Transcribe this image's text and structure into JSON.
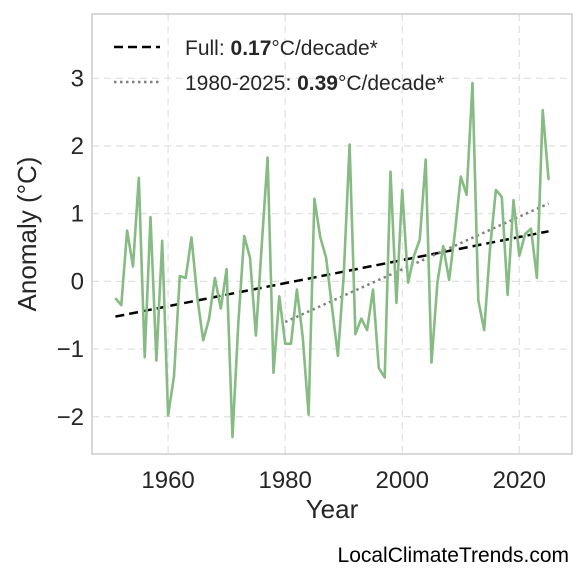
{
  "watermark": "LocalClimateTrends.com",
  "colors": {
    "series": "#86bb83",
    "full_trend": "#000000",
    "recent_trend": "#808080",
    "grid": "#e0e0e0",
    "frame": "#cccccc"
  },
  "chart_data": {
    "type": "line",
    "title": "",
    "xlabel": "Year",
    "ylabel": "Anomaly (°C)",
    "xlim": [
      1947,
      2029
    ],
    "ylim": [
      -2.55,
      3.95
    ],
    "xticks": [
      1960,
      1980,
      2000,
      2020
    ],
    "xtick_labels": [
      "1960",
      "1980",
      "2000",
      "2020"
    ],
    "yticks": [
      -2,
      -1,
      0,
      1,
      2,
      3
    ],
    "ytick_labels": [
      "−2",
      "−1",
      "0",
      "1",
      "2",
      "3"
    ],
    "grid": true,
    "legend_position": "top-left",
    "series": [
      {
        "name": "",
        "x": [
          1951,
          1952,
          1953,
          1954,
          1955,
          1956,
          1957,
          1958,
          1959,
          1960,
          1961,
          1962,
          1963,
          1964,
          1965,
          1966,
          1967,
          1968,
          1969,
          1970,
          1971,
          1972,
          1973,
          1974,
          1975,
          1976,
          1977,
          1978,
          1979,
          1980,
          1981,
          1982,
          1983,
          1984,
          1985,
          1986,
          1987,
          1988,
          1989,
          1990,
          1991,
          1992,
          1993,
          1994,
          1995,
          1996,
          1997,
          1998,
          1999,
          2000,
          2001,
          2002,
          2003,
          2004,
          2005,
          2006,
          2007,
          2008,
          2009,
          2010,
          2011,
          2012,
          2013,
          2014,
          2015,
          2016,
          2017,
          2018,
          2019,
          2020,
          2021,
          2022,
          2023,
          2024,
          2025
        ],
        "y": [
          -0.25,
          -0.35,
          0.75,
          0.22,
          1.53,
          -1.12,
          0.95,
          -1.17,
          0.6,
          -1.98,
          -1.4,
          0.08,
          0.05,
          0.65,
          -0.25,
          -0.87,
          -0.55,
          0.05,
          -0.4,
          0.18,
          -2.3,
          -0.62,
          0.67,
          0.35,
          -0.8,
          0.55,
          1.83,
          -1.35,
          -0.22,
          -0.92,
          -0.92,
          -0.12,
          -0.82,
          -1.97,
          1.22,
          0.65,
          0.35,
          -0.38,
          -1.1,
          0.08,
          2.02,
          -0.78,
          -0.55,
          -0.72,
          -0.12,
          -1.28,
          -1.42,
          1.62,
          -0.32,
          1.35,
          -0.02,
          0.38,
          0.62,
          1.8,
          -1.2,
          -0.02,
          0.52,
          0.02,
          0.72,
          1.55,
          1.28,
          2.93,
          -0.28,
          -0.72,
          0.48,
          1.35,
          1.25,
          -0.2,
          1.2,
          0.38,
          0.7,
          0.78,
          0.05,
          2.53,
          1.5
        ]
      }
    ],
    "trends": [
      {
        "label": "Full",
        "value": "0.17",
        "unit": "°C/decade*",
        "style": "dashed",
        "x": [
          1951,
          2025
        ],
        "y": [
          -0.52,
          0.74
        ]
      },
      {
        "label": "1980-2025",
        "value": "0.39",
        "unit": "°C/decade*",
        "style": "dotted",
        "x": [
          1980,
          2025
        ],
        "y": [
          -0.6,
          1.15
        ]
      }
    ]
  }
}
